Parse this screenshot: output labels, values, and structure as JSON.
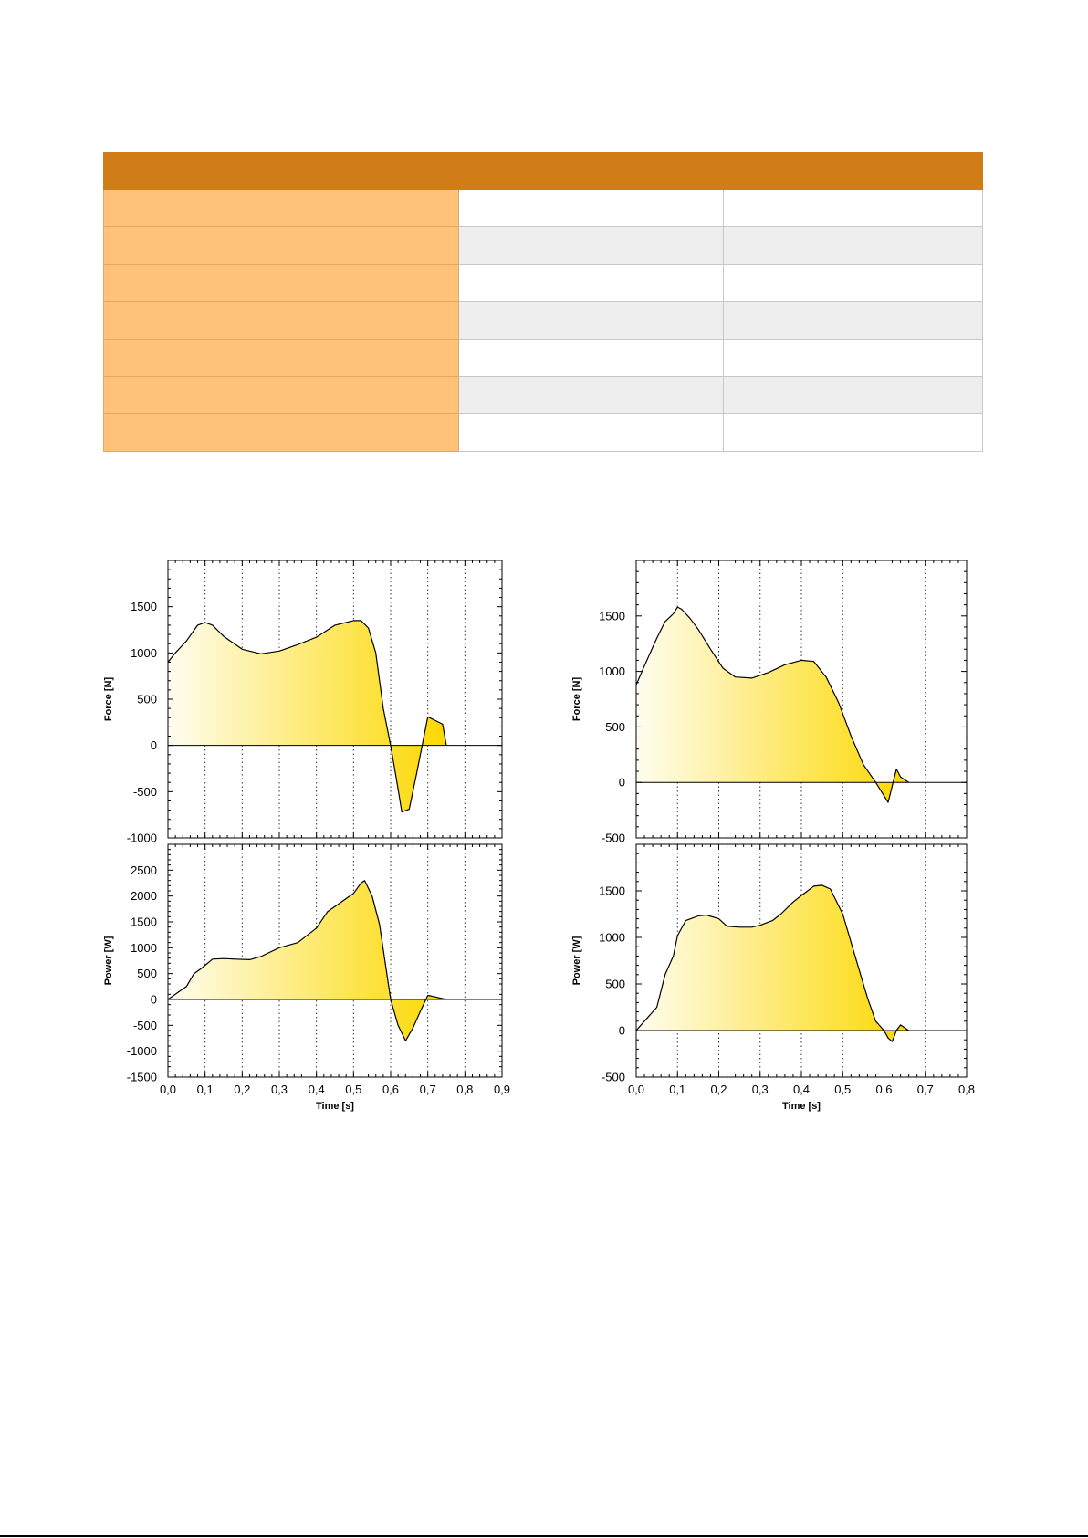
{
  "colors": {
    "table_header": "#d17d17",
    "table_label": "#ffc278",
    "fill_light": "#fffdf0",
    "fill_dark": "#fcd800",
    "curve": "#000000",
    "grid": "#333333"
  },
  "table": {
    "headers": [
      "",
      "",
      ""
    ],
    "rows": [
      [
        "",
        "",
        ""
      ],
      [
        "",
        "",
        ""
      ],
      [
        "",
        "",
        ""
      ],
      [
        "",
        "",
        ""
      ],
      [
        "",
        "",
        ""
      ],
      [
        "",
        "",
        ""
      ],
      [
        "",
        "",
        ""
      ]
    ]
  },
  "chart_data": [
    {
      "type": "area",
      "title": "",
      "xlabel": "",
      "ylabel": "Force [N]",
      "xlim": [
        0,
        0.9
      ],
      "ylim": [
        -1000,
        2000
      ],
      "yticks": [
        -1000,
        -500,
        0,
        500,
        1000,
        1500
      ],
      "ytick_labels": [
        "-1000",
        "-500",
        "0",
        "500",
        "1000",
        "1500"
      ],
      "x_grid": [
        0.1,
        0.2,
        0.3,
        0.4,
        0.5,
        0.6,
        0.7,
        0.8
      ],
      "x": [
        0.0,
        0.02,
        0.05,
        0.08,
        0.1,
        0.12,
        0.15,
        0.2,
        0.25,
        0.3,
        0.35,
        0.4,
        0.45,
        0.5,
        0.52,
        0.54,
        0.56,
        0.58,
        0.6,
        0.62,
        0.63,
        0.65,
        0.67,
        0.7,
        0.74,
        0.75
      ],
      "y": [
        900,
        1000,
        1130,
        1300,
        1330,
        1300,
        1180,
        1040,
        990,
        1020,
        1090,
        1170,
        1300,
        1350,
        1350,
        1270,
        1000,
        400,
        0,
        -470,
        -720,
        -690,
        -300,
        310,
        230,
        0
      ]
    },
    {
      "type": "area",
      "title": "",
      "xlabel": "Time [s]",
      "ylabel": "Power [W]",
      "xlim": [
        0,
        0.9
      ],
      "ylim": [
        -1500,
        3000
      ],
      "yticks": [
        -1500,
        -1000,
        -500,
        0,
        500,
        1000,
        1500,
        2000,
        2500
      ],
      "ytick_labels": [
        "-1500",
        "-1000",
        "-500",
        "0",
        "500",
        "1000",
        "1500",
        "2000",
        "2500"
      ],
      "xticks": [
        0,
        0.1,
        0.2,
        0.3,
        0.4,
        0.5,
        0.6,
        0.7,
        0.8,
        0.9
      ],
      "xtick_labels": [
        "0,0",
        "0,1",
        "0,2",
        "0,3",
        "0,4",
        "0,5",
        "0,6",
        "0,7",
        "0,8",
        "0,9"
      ],
      "x": [
        0.0,
        0.02,
        0.05,
        0.07,
        0.09,
        0.12,
        0.15,
        0.18,
        0.22,
        0.25,
        0.3,
        0.35,
        0.4,
        0.43,
        0.46,
        0.5,
        0.52,
        0.53,
        0.55,
        0.57,
        0.6,
        0.62,
        0.64,
        0.66,
        0.68,
        0.7,
        0.72,
        0.75
      ],
      "y": [
        0,
        100,
        250,
        500,
        600,
        780,
        790,
        780,
        770,
        830,
        1000,
        1100,
        1380,
        1700,
        1850,
        2050,
        2250,
        2300,
        2000,
        1450,
        0,
        -500,
        -800,
        -550,
        -230,
        80,
        50,
        0
      ]
    },
    {
      "type": "area",
      "title": "",
      "xlabel": "",
      "ylabel": "Force [N]",
      "xlim": [
        0,
        0.8
      ],
      "ylim": [
        -500,
        2000
      ],
      "yticks": [
        -500,
        0,
        500,
        1000,
        1500
      ],
      "ytick_labels": [
        "-500",
        "0",
        "500",
        "1000",
        "1500"
      ],
      "x_grid": [
        0.1,
        0.2,
        0.3,
        0.4,
        0.5,
        0.6,
        0.7
      ],
      "x": [
        0.0,
        0.02,
        0.05,
        0.07,
        0.09,
        0.1,
        0.11,
        0.13,
        0.15,
        0.18,
        0.21,
        0.24,
        0.28,
        0.32,
        0.36,
        0.4,
        0.43,
        0.46,
        0.49,
        0.52,
        0.55,
        0.58,
        0.6,
        0.61,
        0.63,
        0.64,
        0.66
      ],
      "y": [
        880,
        1050,
        1300,
        1450,
        1520,
        1580,
        1560,
        1480,
        1380,
        1200,
        1030,
        950,
        940,
        990,
        1060,
        1100,
        1090,
        950,
        720,
        420,
        160,
        0,
        -120,
        -180,
        120,
        50,
        0
      ]
    },
    {
      "type": "area",
      "title": "",
      "xlabel": "Time [s]",
      "ylabel": "Power [W]",
      "xlim": [
        0,
        0.8
      ],
      "ylim": [
        -500,
        2000
      ],
      "yticks": [
        -500,
        0,
        500,
        1000,
        1500
      ],
      "ytick_labels": [
        "-500",
        "0",
        "500",
        "1000",
        "1500"
      ],
      "xticks": [
        0,
        0.1,
        0.2,
        0.3,
        0.4,
        0.5,
        0.6,
        0.7,
        0.8
      ],
      "xtick_labels": [
        "0,0",
        "0,1",
        "0,2",
        "0,3",
        "0,4",
        "0,5",
        "0,6",
        "0,7",
        "0,8"
      ],
      "x": [
        0.0,
        0.02,
        0.05,
        0.07,
        0.09,
        0.1,
        0.12,
        0.15,
        0.17,
        0.2,
        0.22,
        0.25,
        0.28,
        0.3,
        0.33,
        0.35,
        0.38,
        0.4,
        0.43,
        0.45,
        0.47,
        0.5,
        0.53,
        0.56,
        0.58,
        0.6,
        0.61,
        0.62,
        0.63,
        0.64,
        0.66
      ],
      "y": [
        0,
        100,
        250,
        600,
        800,
        1020,
        1180,
        1230,
        1240,
        1200,
        1120,
        1110,
        1110,
        1130,
        1180,
        1250,
        1380,
        1450,
        1550,
        1560,
        1520,
        1250,
        800,
        350,
        100,
        0,
        -80,
        -120,
        0,
        60,
        0
      ]
    }
  ]
}
